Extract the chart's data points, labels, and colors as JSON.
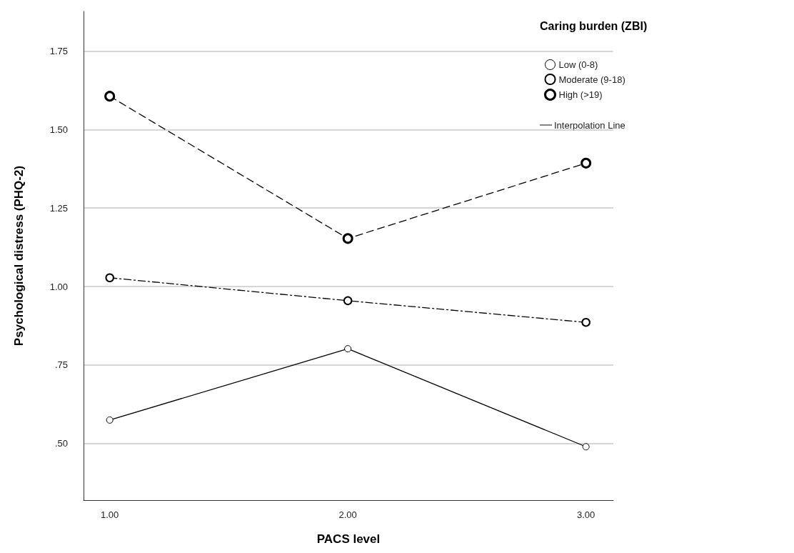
{
  "chart_data": {
    "type": "line",
    "xlabel": "PACS level",
    "ylabel": "Psychological distress (PHQ-2)",
    "legend_title": "Caring burden (ZBI)",
    "legend": "top right",
    "grid": "y",
    "marker": "circle",
    "x": [
      1,
      2,
      3
    ],
    "xlim": [
      0.89,
      3.115
    ],
    "xticks": [
      {
        "value": 1,
        "label": "1.00"
      },
      {
        "value": 2,
        "label": "2.00"
      },
      {
        "value": 3,
        "label": "3.00"
      }
    ],
    "ylim": [
      0.32,
      1.876
    ],
    "yticks": [
      {
        "value": 0.5,
        "label": ".50"
      },
      {
        "value": 0.75,
        "label": ".75"
      },
      {
        "value": 1,
        "label": "1.00"
      },
      {
        "value": 1.25,
        "label": "1.25"
      },
      {
        "value": 1.5,
        "label": "1.50"
      },
      {
        "value": 1.75,
        "label": "1.75"
      }
    ],
    "series": [
      {
        "name": "Low (0-8)",
        "color": "#000000",
        "line_style": "solid",
        "values": [
          0.575,
          0.802,
          0.49
        ]
      },
      {
        "name": "Moderate (9-18)",
        "color": "#000000",
        "line_style": "dashdot",
        "values": [
          1.028,
          0.955,
          0.886
        ]
      },
      {
        "name": "High (>19)",
        "color": "#000000",
        "line_style": "dashed",
        "values": [
          1.606,
          1.153,
          1.393
        ]
      }
    ],
    "annotations": [
      "Interpolation Line"
    ]
  }
}
